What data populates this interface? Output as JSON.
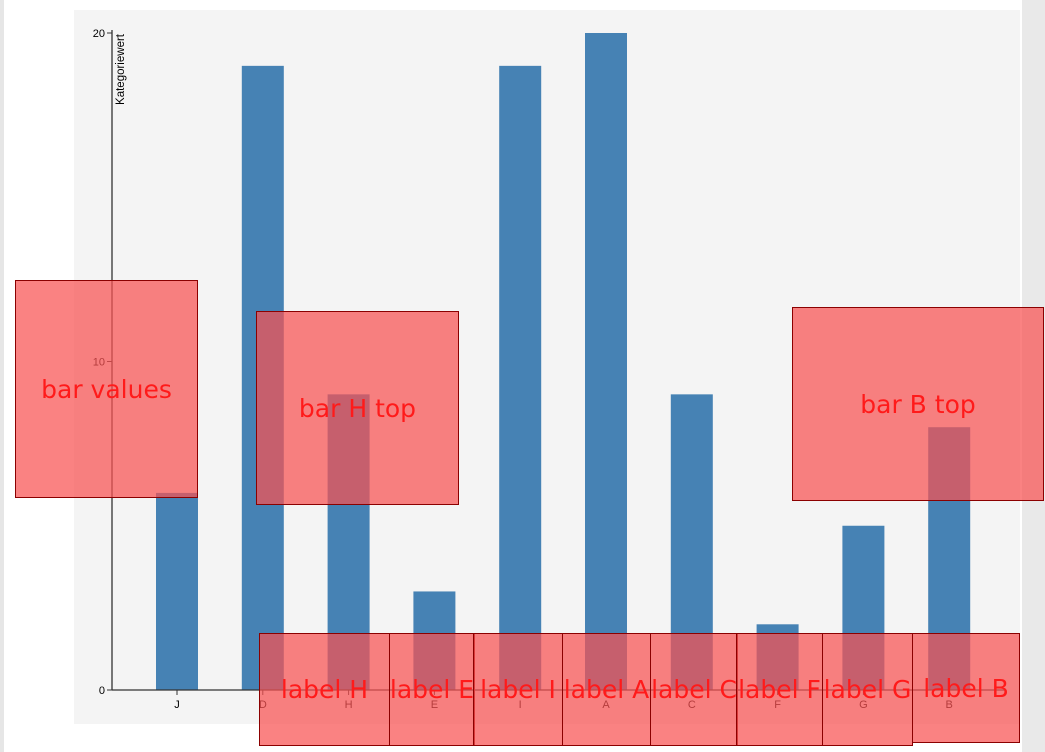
{
  "chart_data": {
    "type": "bar",
    "categories": [
      "J",
      "D",
      "H",
      "E",
      "I",
      "A",
      "C",
      "F",
      "G",
      "B"
    ],
    "values": [
      6,
      19,
      9,
      3,
      19,
      20,
      9,
      2,
      5,
      8
    ],
    "ylabel": "Kategoriewert",
    "xlabel": "",
    "ylim": [
      0,
      20
    ],
    "yticks": [
      0,
      10,
      20
    ],
    "bar_color": "#4682b4",
    "plot_background": "#f4f4f4",
    "grid": false
  },
  "overlays": [
    {
      "label": "bar values"
    },
    {
      "label": "bar H top"
    },
    {
      "label": "bar B top"
    },
    {
      "label": "label H"
    },
    {
      "label": "label E"
    },
    {
      "label": "label I"
    },
    {
      "label": "label A"
    },
    {
      "label": "label C"
    },
    {
      "label": "label F"
    },
    {
      "label": "label G"
    },
    {
      "label": "label B"
    }
  ]
}
